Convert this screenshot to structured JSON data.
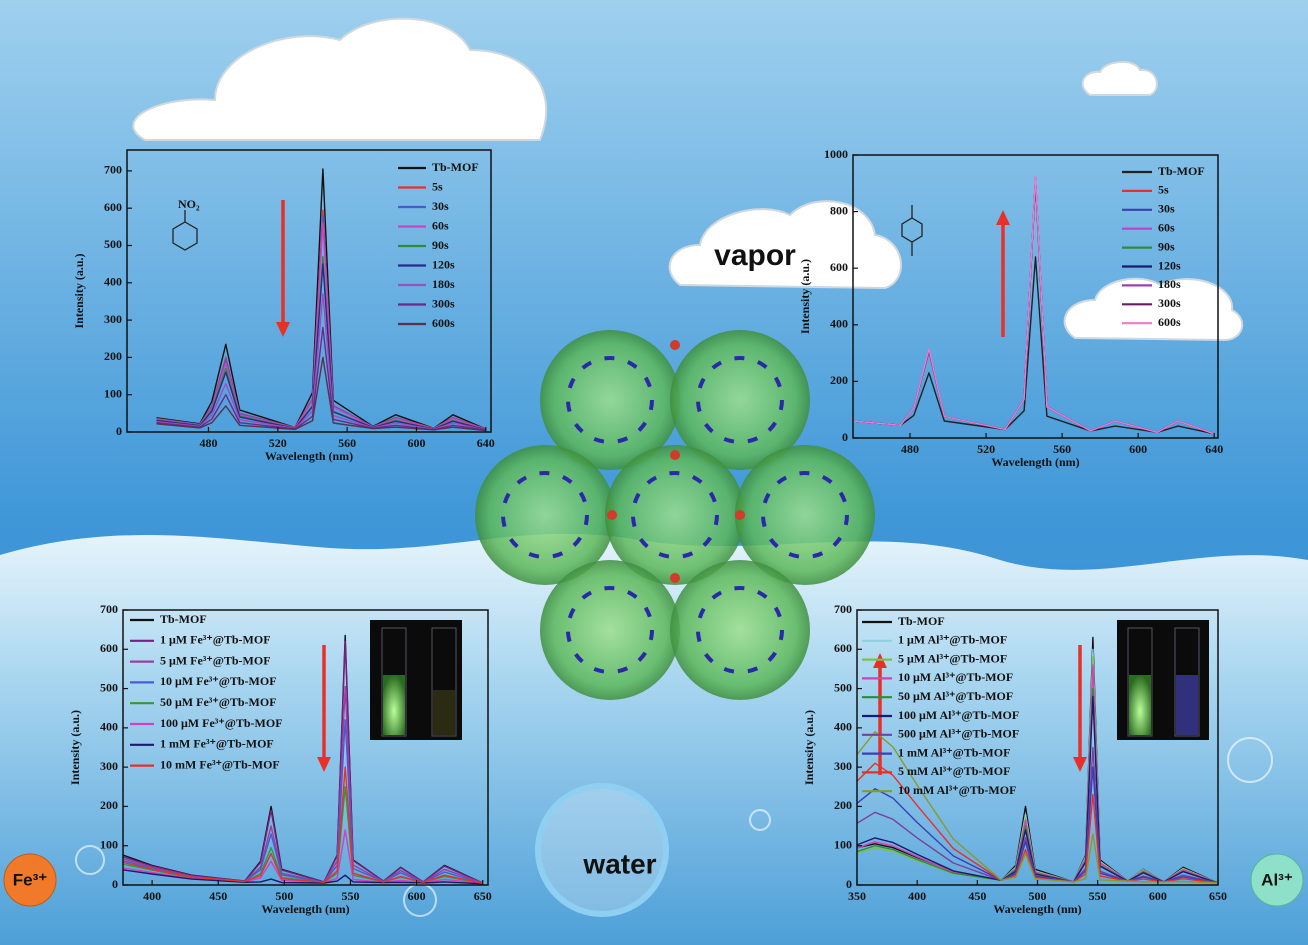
{
  "chart_data": [
    {
      "type": "line",
      "annotation": "NO₂",
      "xlabel": "Wavelength (nm)",
      "ylabel": "Intensity (a.u.)",
      "x": [
        450,
        475,
        482,
        490,
        498,
        530,
        540,
        546,
        552,
        575,
        588,
        610,
        621,
        640
      ],
      "xlim": [
        433,
        643
      ],
      "ylim": [
        0,
        756
      ],
      "xticks": [
        480,
        520,
        560,
        600,
        640
      ],
      "yticks": [
        0,
        100,
        200,
        300,
        400,
        500,
        600,
        700
      ],
      "series": [
        {
          "name": "Tb-MOF",
          "color": "#111111",
          "values": [
            38,
            22,
            82,
            235,
            59,
            12,
            106,
            705,
            85,
            15,
            46,
            10,
            46,
            8
          ]
        },
        {
          "name": "5s",
          "color": "#e8302a",
          "values": [
            36,
            20,
            70,
            200,
            50,
            12,
            89,
            595,
            71,
            14,
            39,
            10,
            39,
            8
          ]
        },
        {
          "name": "30s",
          "color": "#4a5ad0",
          "values": [
            35,
            20,
            68,
            195,
            49,
            11,
            87,
            580,
            70,
            14,
            38,
            9,
            38,
            7
          ]
        },
        {
          "name": "60s",
          "color": "#d040c0",
          "values": [
            34,
            19,
            65,
            185,
            46,
            11,
            84,
            560,
            67,
            13,
            36,
            9,
            36,
            7
          ]
        },
        {
          "name": "90s",
          "color": "#2e8b3a",
          "values": [
            32,
            18,
            60,
            170,
            43,
            10,
            71,
            470,
            56,
            12,
            31,
            8,
            31,
            6
          ]
        },
        {
          "name": "120s",
          "color": "#2a2a8a",
          "values": [
            31,
            17,
            56,
            160,
            40,
            10,
            68,
            450,
            54,
            12,
            29,
            8,
            29,
            6
          ]
        },
        {
          "name": "180s",
          "color": "#9b4fc0",
          "values": [
            28,
            15,
            46,
            130,
            33,
            9,
            56,
            370,
            44,
            11,
            24,
            7,
            24,
            5
          ]
        },
        {
          "name": "300s",
          "color": "#6a2a8a",
          "values": [
            25,
            13,
            35,
            100,
            25,
            8,
            42,
            280,
            34,
            10,
            18,
            6,
            18,
            5
          ]
        },
        {
          "name": "600s",
          "color": "#5a3050",
          "values": [
            22,
            11,
            25,
            70,
            18,
            7,
            30,
            200,
            24,
            9,
            13,
            6,
            13,
            4
          ]
        }
      ]
    },
    {
      "type": "line",
      "xlabel": "Wavelength (nm)",
      "ylabel": "Intensity (a.u.)",
      "x": [
        450,
        475,
        482,
        490,
        498,
        530,
        540,
        546,
        552,
        575,
        588,
        610,
        621,
        640
      ],
      "xlim": [
        450,
        642
      ],
      "ylim": [
        0,
        1000
      ],
      "xticks": [
        480,
        520,
        560,
        600,
        640
      ],
      "yticks": [
        0,
        200,
        400,
        600,
        800,
        1000
      ],
      "series": [
        {
          "name": "Tb-MOF",
          "color": "#222222",
          "values": [
            60,
            45,
            80,
            230,
            60,
            30,
            96,
            640,
            77,
            25,
            42,
            20,
            42,
            15
          ]
        },
        {
          "name": "5s",
          "color": "#e8302a",
          "values": [
            60,
            45,
            106,
            305,
            76,
            30,
            137,
            905,
            110,
            25,
            60,
            20,
            60,
            15
          ]
        },
        {
          "name": "30s",
          "color": "#3f3fb5",
          "values": [
            60,
            45,
            106,
            310,
            76,
            30,
            137,
            915,
            110,
            25,
            60,
            20,
            60,
            15
          ]
        },
        {
          "name": "60s",
          "color": "#c040c0",
          "values": [
            60,
            45,
            106,
            312,
            76,
            30,
            137,
            920,
            110,
            25,
            60,
            20,
            60,
            15
          ]
        },
        {
          "name": "90s",
          "color": "#2e8b3a",
          "values": [
            60,
            45,
            106,
            308,
            76,
            30,
            137,
            910,
            110,
            25,
            60,
            20,
            60,
            15
          ]
        },
        {
          "name": "120s",
          "color": "#1a1a6e",
          "values": [
            60,
            45,
            106,
            310,
            76,
            30,
            137,
            918,
            110,
            25,
            60,
            20,
            60,
            15
          ]
        },
        {
          "name": "180s",
          "color": "#9b40b0",
          "values": [
            60,
            45,
            106,
            306,
            76,
            30,
            137,
            912,
            110,
            25,
            60,
            20,
            60,
            15
          ]
        },
        {
          "name": "300s",
          "color": "#6a1a6a",
          "values": [
            60,
            45,
            106,
            311,
            76,
            30,
            137,
            922,
            110,
            25,
            60,
            20,
            60,
            15
          ]
        },
        {
          "name": "600s",
          "color": "#f07ad0",
          "values": [
            60,
            45,
            106,
            314,
            76,
            30,
            137,
            925,
            110,
            25,
            60,
            20,
            60,
            15
          ]
        }
      ]
    },
    {
      "type": "line",
      "xlabel": "Wavelength (nm)",
      "ylabel": "Intensity (a.u.)",
      "x": [
        375,
        400,
        430,
        470,
        482,
        490,
        498,
        530,
        540,
        546,
        552,
        575,
        588,
        605,
        621,
        650
      ],
      "xlim": [
        378,
        654
      ],
      "ylim": [
        0,
        700
      ],
      "xticks": [
        400,
        450,
        500,
        550,
        600,
        650
      ],
      "yticks": [
        0,
        100,
        200,
        300,
        400,
        500,
        600,
        700
      ],
      "series": [
        {
          "name": "Tb-MOF",
          "color": "#111111",
          "values": [
            80,
            50,
            25,
            10,
            60,
            200,
            40,
            8,
            76,
            635,
            64,
            10,
            45,
            8,
            50,
            5
          ]
        },
        {
          "name": "1 μM Fe³⁺@Tb-MOF",
          "color": "#7b1f7f",
          "values": [
            75,
            48,
            24,
            10,
            57,
            190,
            38,
            8,
            74,
            620,
            62,
            10,
            44,
            8,
            48,
            5
          ]
        },
        {
          "name": "5 μM Fe³⁺@Tb-MOF",
          "color": "#9b3fa0",
          "values": [
            70,
            45,
            22,
            9,
            45,
            150,
            30,
            7,
            61,
            505,
            51,
            9,
            37,
            7,
            40,
            5
          ]
        },
        {
          "name": "10 μM Fe³⁺@Tb-MOF",
          "color": "#4a5ad0",
          "values": [
            65,
            42,
            20,
            9,
            39,
            130,
            26,
            7,
            50,
            420,
            42,
            9,
            31,
            7,
            33,
            4
          ]
        },
        {
          "name": "50 μM Fe³⁺@Tb-MOF",
          "color": "#2e9b3a",
          "values": [
            55,
            38,
            18,
            8,
            29,
            95,
            19,
            6,
            30,
            250,
            25,
            8,
            20,
            6,
            22,
            4
          ]
        },
        {
          "name": "100 μM Fe³⁺@Tb-MOF",
          "color": "#d040c0",
          "values": [
            45,
            32,
            16,
            8,
            18,
            60,
            12,
            6,
            17,
            140,
            14,
            7,
            12,
            6,
            14,
            4
          ]
        },
        {
          "name": "1 mM Fe³⁺@Tb-MOF",
          "color": "#1a1a6e",
          "values": [
            40,
            28,
            15,
            7,
            8,
            15,
            6,
            5,
            10,
            25,
            8,
            6,
            7,
            5,
            8,
            3
          ]
        },
        {
          "name": "10 mM Fe³⁺@Tb-MOF",
          "color": "#e8302a",
          "values": [
            60,
            40,
            20,
            9,
            24,
            80,
            16,
            7,
            36,
            300,
            30,
            8,
            22,
            7,
            25,
            4
          ]
        }
      ]
    },
    {
      "type": "line",
      "xlabel": "Wavelength (nm)",
      "ylabel": "Intensity (a.u.)",
      "x": [
        350,
        365,
        380,
        400,
        430,
        470,
        482,
        490,
        498,
        530,
        540,
        546,
        552,
        575,
        588,
        605,
        621,
        650
      ],
      "xlim": [
        350,
        650
      ],
      "ylim": [
        0,
        700
      ],
      "xticks": [
        350,
        400,
        450,
        500,
        550,
        600,
        650
      ],
      "yticks": [
        0,
        100,
        200,
        300,
        400,
        500,
        600,
        700
      ],
      "series": [
        {
          "name": "Tb-MOF",
          "color": "#111111",
          "values": [
            95,
            105,
            95,
            70,
            35,
            12,
            50,
            200,
            40,
            8,
            76,
            630,
            64,
            10,
            40,
            8,
            45,
            5
          ]
        },
        {
          "name": "1 μM Al³⁺@Tb-MOF",
          "color": "#8fd3e0",
          "values": [
            85,
            100,
            90,
            65,
            30,
            12,
            45,
            180,
            36,
            8,
            72,
            600,
            60,
            10,
            39,
            8,
            42,
            5
          ]
        },
        {
          "name": "5 μM Al³⁺@Tb-MOF",
          "color": "#7cc242",
          "values": [
            81,
            95,
            86,
            62,
            29,
            12,
            43,
            170,
            34,
            8,
            70,
            580,
            58,
            10,
            38,
            8,
            41,
            5
          ]
        },
        {
          "name": "10 μM Al³⁺@Tb-MOF",
          "color": "#d83fb0",
          "values": [
            94,
            110,
            99,
            72,
            33,
            12,
            41,
            165,
            33,
            8,
            67,
            560,
            56,
            10,
            36,
            8,
            39,
            5
          ]
        },
        {
          "name": "50 μM Al³⁺@Tb-MOF",
          "color": "#2e8b3a",
          "values": [
            85,
            100,
            90,
            65,
            30,
            12,
            38,
            150,
            30,
            8,
            60,
            500,
            50,
            10,
            33,
            8,
            35,
            5
          ]
        },
        {
          "name": "100 μM Al³⁺@Tb-MOF",
          "color": "#1a1a6e",
          "values": [
            102,
            120,
            108,
            78,
            36,
            12,
            35,
            140,
            28,
            8,
            58,
            480,
            48,
            10,
            31,
            8,
            34,
            5
          ]
        },
        {
          "name": "500 μM Al³⁺@Tb-MOF",
          "color": "#7b3fa0",
          "values": [
            157,
            185,
            167,
            120,
            56,
            12,
            30,
            120,
            24,
            8,
            42,
            350,
            35,
            10,
            23,
            8,
            25,
            5
          ]
        },
        {
          "name": "1 mM Al³⁺@Tb-MOF",
          "color": "#3b3fb5",
          "values": [
            208,
            245,
            221,
            159,
            74,
            12,
            28,
            110,
            22,
            8,
            36,
            300,
            30,
            10,
            20,
            8,
            21,
            5
          ]
        },
        {
          "name": "5 mM Al³⁺@Tb-MOF",
          "color": "#e8302a",
          "values": [
            264,
            310,
            279,
            202,
            93,
            12,
            23,
            90,
            18,
            8,
            28,
            230,
            23,
            10,
            15,
            8,
            16,
            5
          ]
        },
        {
          "name": "10 mM Al³⁺@Tb-MOF",
          "color": "#8a9a2a",
          "values": [
            332,
            390,
            351,
            254,
            117,
            12,
            20,
            80,
            16,
            8,
            16,
            130,
            13,
            10,
            8,
            8,
            9,
            5
          ]
        }
      ]
    }
  ],
  "scene": {
    "vapor": "vapor",
    "water": "water",
    "fe": "Fe³⁺",
    "al": "Al³⁺"
  }
}
